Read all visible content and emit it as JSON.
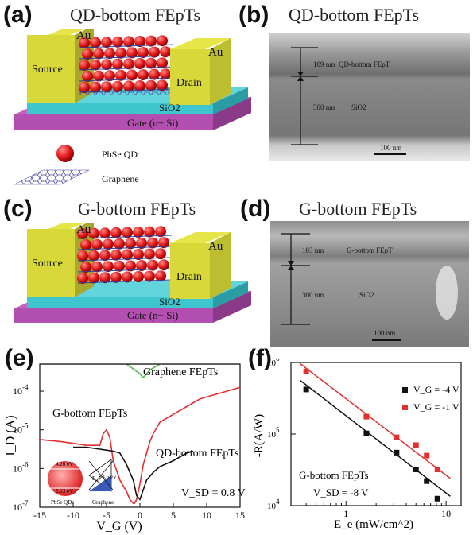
{
  "panels": {
    "a": {
      "letter": "(a)",
      "title": "QD-bottom FEpTs",
      "labels": {
        "au_left": "Au",
        "au_right": "Au",
        "source": "Source",
        "drain": "Drain",
        "sio2": "SiO2",
        "gate": "Gate (n+ Si)"
      },
      "legend": {
        "qd": "PbSe QD",
        "graphene": "Graphene"
      }
    },
    "b": {
      "letter": "(b)",
      "title": "QD-bottom FEpTs",
      "labels": {
        "thickness_top": "109 nm",
        "layer_top": "QD-bottom FEpT",
        "thickness_bottom": "300 nm",
        "layer_bottom": "SiO2",
        "scale": "100 nm"
      }
    },
    "c": {
      "letter": "(c)",
      "title": "G-bottom FEpTs",
      "labels": {
        "au_left": "Au",
        "au_right": "Au",
        "source": "Source",
        "drain": "Drain",
        "sio2": "SiO2",
        "gate": "Gate (n+ Si)"
      }
    },
    "d": {
      "letter": "(d)",
      "title": "G-bottom FEpTs",
      "labels": {
        "thickness_top": "103 nm",
        "layer_top": "G-bottom FEpT",
        "thickness_bottom": "300 nm",
        "layer_bottom": "SiO2",
        "scale": "100 nm"
      }
    },
    "e": {
      "letter": "(e)"
    },
    "f": {
      "letter": "(f)"
    }
  },
  "colors": {
    "gold": "#d8d83a",
    "gold_dark": "#a9a82c",
    "gold_side": "#bdbd30",
    "sio2": "#3ec6cf",
    "sio2_dark": "#2a9ca4",
    "gate": "#b24fb0",
    "gate_dark": "#8a3a88",
    "qd": "#e02020",
    "graphene": "#3a3a9a",
    "red_curve": "#e23030",
    "black_curve": "#111111",
    "green_curve": "#55b84a"
  },
  "chart_data": [
    {
      "id": "e",
      "type": "line",
      "xlabel": "V_G (V)",
      "ylabel": "I_D (A)",
      "xlim": [
        -15,
        15
      ],
      "ylim_log10": [
        -7,
        -3.3
      ],
      "xticks": [
        -15,
        -10,
        -5,
        0,
        5,
        10,
        15
      ],
      "ytick_labels": [
        "10^-7",
        "10^-6",
        "10^-5",
        "10^-4"
      ],
      "yscale": "log",
      "annotations": [
        "Graphene FEpTs",
        "G-bottom FEpTs",
        "QD-bottom FEpTs",
        "V_SD = 0.8 V"
      ],
      "inset_labels": {
        "e1": "4.26 eV",
        "e2": "5.13 eV",
        "ef": "-4.6 eV",
        "ef_sym": "E_F",
        "left": "PbSe QDs",
        "right": "Graphene"
      },
      "series": [
        {
          "name": "Graphene FEpTs",
          "x": [
            -5,
            -2,
            0,
            0.5,
            1,
            1.5,
            3,
            5,
            8
          ],
          "y": [
            -3.0,
            -3.3,
            -3.55,
            -3.65,
            -3.55,
            -3.45,
            -3.3,
            -3.15,
            -2.95
          ]
        },
        {
          "name": "G-bottom FEpTs",
          "x": [
            -15,
            -12,
            -10,
            -8,
            -6,
            -5.5,
            -5,
            -4.5,
            -4,
            -3,
            -2,
            -1.5,
            -1,
            -0.8,
            -0.5,
            0,
            0.5,
            1,
            1.5,
            2,
            3,
            5,
            7,
            9,
            11,
            13,
            15
          ],
          "y": [
            -5.25,
            -5.3,
            -5.35,
            -5.4,
            -5.4,
            -5.1,
            -5.0,
            -5.2,
            -5.8,
            -6.3,
            -6.6,
            -6.8,
            -6.9,
            -6.9,
            -6.8,
            -6.4,
            -5.9,
            -5.6,
            -5.3,
            -5.1,
            -4.8,
            -4.6,
            -4.4,
            -4.2,
            -4.1,
            -4.0,
            -3.9
          ]
        },
        {
          "name": "QD-bottom FEpTs",
          "x": [
            -10,
            -8,
            -6,
            -4,
            -3,
            -2,
            -1,
            -0.5,
            0,
            0.5,
            1,
            2,
            3,
            5,
            7,
            8
          ],
          "y": [
            -5.45,
            -5.45,
            -5.5,
            -5.55,
            -5.6,
            -5.9,
            -6.3,
            -6.7,
            -6.8,
            -6.55,
            -6.3,
            -6.1,
            -5.95,
            -5.8,
            -5.6,
            -5.55
          ]
        }
      ]
    },
    {
      "id": "f",
      "type": "scatter",
      "xlabel": "E_e (mW/cm^2)",
      "ylabel": "-R(A/W)",
      "xscale": "log",
      "yscale": "log",
      "xlim_log10": [
        -0.55,
        1.15
      ],
      "ylim_log10": [
        4,
        6
      ],
      "xtick_labels": [
        "1",
        "10"
      ],
      "ytick_labels": [
        "10^4",
        "10^5",
        "10^6"
      ],
      "annotations": [
        "G-bottom FEpTs",
        "V_SD = -8 V"
      ],
      "legend_position": "right",
      "series": [
        {
          "name": "V_G = -4 V",
          "color": "#111111",
          "x": [
            0.4,
            1.6,
            3.2,
            5.0,
            6.4,
            8.2
          ],
          "y": [
            420000,
            102000,
            55000,
            32000,
            22000,
            12500
          ]
        },
        {
          "name": "V_G = -1 V",
          "color": "#e23030",
          "x": [
            0.4,
            1.6,
            3.2,
            5.0,
            6.4,
            8.2
          ],
          "y": [
            750000,
            175000,
            90000,
            70000,
            50000,
            32000
          ]
        }
      ],
      "fits": [
        {
          "color": "#111111",
          "x": [
            0.35,
            11
          ],
          "y": [
            560000,
            13500
          ]
        },
        {
          "color": "#e23030",
          "x": [
            0.35,
            11
          ],
          "y": [
            960000,
            24000
          ]
        }
      ]
    }
  ]
}
